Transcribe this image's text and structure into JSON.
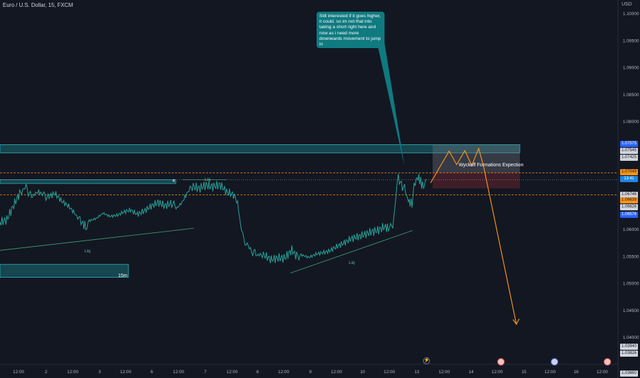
{
  "header": {
    "symbol_title": "Euro / U.S. Dollar, 15, FXCM",
    "currency": "USD"
  },
  "note": {
    "text": "Still interested if it goes higher, it could. so im not that into taking a short right here and now as i need more downwards movement to jump in"
  },
  "annotations": {
    "wyckoff": "Wyckoff Formations Expection",
    "timeframe_box": "15m",
    "box_number": "4",
    "liq_labels": [
      "Liq",
      "Liq",
      "Liq"
    ]
  },
  "price_tags": [
    {
      "text": "1.07575",
      "bg": "#2962ff",
      "fg": "#ffffff"
    },
    {
      "text": "1.07545",
      "bg": "#d1d4dc",
      "fg": "#131722"
    },
    {
      "text": "1.07425",
      "bg": "#d1d4dc",
      "fg": "#131722"
    },
    {
      "text": "1.07049",
      "bg": "#f7931a",
      "fg": "#131722"
    },
    {
      "text": "13:41",
      "bg": "#1e88e5",
      "fg": "#ffffff"
    },
    {
      "text": "1.06746",
      "bg": "#d1d4dc",
      "fg": "#131722"
    },
    {
      "text": "1.06639",
      "bg": "#f7931a",
      "fg": "#131722"
    },
    {
      "text": "1.06626",
      "bg": "#d1d4dc",
      "fg": "#131722"
    },
    {
      "text": "1.06576",
      "bg": "#2962ff",
      "fg": "#ffffff"
    },
    {
      "text": "1.03940",
      "bg": "#d1d4dc",
      "fg": "#131722"
    },
    {
      "text": "1.03826",
      "bg": "#d1d4dc",
      "fg": "#131722"
    },
    {
      "text": "1.03660",
      "bg": "#d1d4dc",
      "fg": "#131722"
    }
  ],
  "colors": {
    "background": "#131722",
    "line": "#26a69a",
    "zone": "#1a6e75",
    "projection": "#f7931a",
    "dashed_level": "#f7931a"
  },
  "chart_data": {
    "type": "line",
    "title": "Euro / U.S. Dollar, 15, FXCM",
    "ylim": [
      1.035,
      1.1025
    ],
    "y_ticks": [
      1.1,
      1.095,
      1.09,
      1.085,
      1.08,
      1.06,
      1.055,
      1.05,
      1.045,
      1.04
    ],
    "y_tick_labels": [
      "1.10000",
      "1.09500",
      "1.09000",
      "1.08500",
      "1.08000",
      "1.06000",
      "1.05500",
      "1.05000",
      "1.04500",
      "1.04000"
    ],
    "x_tick_labels": [
      "12:00",
      "2",
      "12:00",
      "3",
      "12:00",
      "6",
      "12:00",
      "7",
      "12:00",
      "8",
      "12:00",
      "9",
      "12:00",
      "10",
      "12:00",
      "13",
      "12:00",
      "14",
      "12:00",
      "15",
      "12:00",
      "16",
      "12:00"
    ],
    "x_range": [
      0,
      938
    ],
    "x_tick_positions": [
      27,
      67,
      106,
      145,
      183,
      221,
      260,
      299,
      338,
      375,
      413,
      452,
      490,
      528,
      567,
      607,
      647,
      686,
      724,
      763,
      801,
      839,
      877
    ],
    "series": [
      {
        "values": [
          [
            0,
            1.0613
          ],
          [
            10,
            1.0618
          ],
          [
            20,
            1.0645
          ],
          [
            30,
            1.067
          ],
          [
            38,
            1.0678
          ],
          [
            46,
            1.066
          ],
          [
            55,
            1.067
          ],
          [
            62,
            1.0665
          ],
          [
            70,
            1.066
          ],
          [
            80,
            1.0667
          ],
          [
            90,
            1.0652
          ],
          [
            100,
            1.0643
          ],
          [
            110,
            1.0628
          ],
          [
            118,
            1.0614
          ],
          [
            125,
            1.0605
          ],
          [
            130,
            1.0616
          ],
          [
            140,
            1.062
          ],
          [
            150,
            1.063
          ],
          [
            160,
            1.0624
          ],
          [
            170,
            1.0626
          ],
          [
            180,
            1.0632
          ],
          [
            190,
            1.0636
          ],
          [
            200,
            1.0628
          ],
          [
            210,
            1.0634
          ],
          [
            220,
            1.0643
          ],
          [
            230,
            1.065
          ],
          [
            240,
            1.0644
          ],
          [
            250,
            1.0648
          ],
          [
            258,
            1.064
          ],
          [
            265,
            1.065
          ],
          [
            272,
            1.0666
          ],
          [
            280,
            1.068
          ],
          [
            290,
            1.0676
          ],
          [
            300,
            1.0682
          ],
          [
            310,
            1.0679
          ],
          [
            320,
            1.0683
          ],
          [
            330,
            1.067
          ],
          [
            340,
            1.0664
          ],
          [
            346,
            1.065
          ],
          [
            350,
            1.061
          ],
          [
            355,
            1.0584
          ],
          [
            360,
            1.057
          ],
          [
            368,
            1.0558
          ],
          [
            376,
            1.0553
          ],
          [
            385,
            1.0552
          ],
          [
            395,
            1.0544
          ],
          [
            405,
            1.0547
          ],
          [
            415,
            1.0547
          ],
          [
            425,
            1.0562
          ],
          [
            432,
            1.055
          ],
          [
            440,
            1.0552
          ],
          [
            450,
            1.0548
          ],
          [
            460,
            1.0554
          ],
          [
            470,
            1.0557
          ],
          [
            480,
            1.056
          ],
          [
            490,
            1.0568
          ],
          [
            500,
            1.0574
          ],
          [
            510,
            1.0582
          ],
          [
            520,
            1.0586
          ],
          [
            530,
            1.059
          ],
          [
            540,
            1.0595
          ],
          [
            550,
            1.0598
          ],
          [
            560,
            1.0605
          ],
          [
            567,
            1.0601
          ],
          [
            572,
            1.0605
          ],
          [
            575,
            1.064
          ],
          [
            578,
            1.068
          ],
          [
            580,
            1.0695
          ],
          [
            583,
            1.0688
          ],
          [
            586,
            1.0677
          ],
          [
            589,
            1.068
          ],
          [
            592,
            1.0662
          ],
          [
            596,
            1.065
          ],
          [
            600,
            1.0648
          ],
          [
            603,
            1.068
          ],
          [
            606,
            1.0693
          ],
          [
            610,
            1.0696
          ],
          [
            614,
            1.0684
          ],
          [
            618,
            1.0678
          ],
          [
            621,
            1.0693
          ]
        ]
      }
    ],
    "projection_path": [
      [
        627,
        1.0686
      ],
      [
        654,
        1.0745
      ],
      [
        665,
        1.072
      ],
      [
        677,
        1.0746
      ],
      [
        687,
        1.0718
      ],
      [
        697,
        1.075
      ],
      [
        704,
        1.0718
      ],
      [
        752,
        1.0424
      ]
    ],
    "zones": [
      {
        "label": "",
        "x": [
          0,
          757
        ],
        "y": [
          1.07418,
          1.0757
        ]
      },
      {
        "label": "4",
        "x": [
          0,
          256
        ],
        "y": [
          1.0685,
          1.0692
        ]
      },
      {
        "label": "15m",
        "x": [
          0,
          187
        ],
        "y": [
          1.0511,
          1.0535
        ]
      }
    ],
    "position_box": {
      "x": [
        630,
        757
      ],
      "profit": [
        1.07049,
        1.0757
      ],
      "loss": [
        1.0676,
        1.07049
      ]
    },
    "horizontal_levels": [
      1.07049,
      1.06639
    ],
    "dotted_level": 1.0692,
    "trendlines": [
      {
        "label": "Liq",
        "from": [
          0,
          1.0561
        ],
        "to": [
          282,
          1.0602
        ]
      },
      {
        "label": "Liq",
        "from": [
          423,
          1.0519
        ],
        "to": [
          601,
          1.0598
        ]
      },
      {
        "label": "Liq",
        "from": [
          266,
          1.0692
        ],
        "to": [
          330,
          1.0692
        ]
      }
    ],
    "note_pointer": {
      "from": [
        551,
        1.0969
      ],
      "to": [
        589,
        1.0717
      ]
    }
  }
}
